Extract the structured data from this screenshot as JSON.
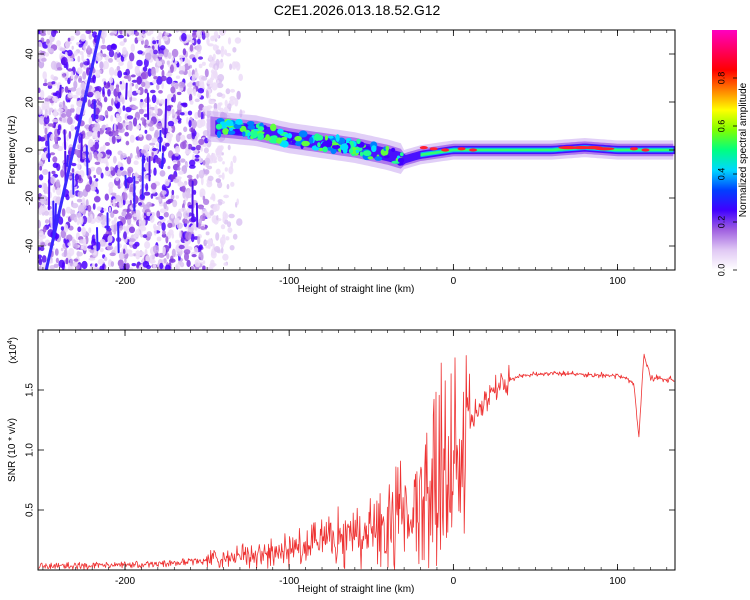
{
  "chart_data": [
    {
      "type": "heatmap",
      "title": "C2E1.2026.013.18.52.G12",
      "xlabel": "Height of straight line (km)",
      "ylabel": "Frequency (Hz)",
      "xlim": [
        -253,
        135
      ],
      "ylim": [
        -50,
        50
      ],
      "xticks": [
        -200,
        -100,
        0,
        100
      ],
      "xtick_labels": [
        "-200",
        "-100",
        "0",
        "100"
      ],
      "yticks": [
        -40,
        -20,
        0,
        20,
        40
      ],
      "ytick_labels": [
        "-40",
        "-20",
        "0",
        "20",
        "40"
      ],
      "ridge": {
        "x": [
          -150,
          -120,
          -100,
          -80,
          -60,
          -40,
          -30,
          -20,
          0,
          20,
          60,
          80,
          100,
          120,
          135
        ],
        "y": [
          10,
          8,
          5,
          3,
          1,
          -2,
          -4,
          -2,
          0,
          0,
          0,
          1,
          0,
          0,
          0
        ]
      },
      "diagonal_line": {
        "x": [
          -248,
          -215
        ],
        "y": [
          -50,
          50
        ]
      },
      "colorbar": {
        "label": "Normalized spectral amplitude",
        "range": [
          0,
          1
        ],
        "ticks": [
          0.0,
          0.2,
          0.4,
          0.6,
          0.8
        ],
        "tick_labels": [
          "0.0",
          "0.2",
          "0.4",
          "0.6",
          "0.8"
        ],
        "colors": [
          "#ffffff",
          "#e0c8f4",
          "#a060e0",
          "#4000ff",
          "#0040ff",
          "#00d8ff",
          "#00ff80",
          "#80ff00",
          "#ffff00",
          "#ff8000",
          "#ff0000",
          "#ff0060",
          "#ff00c0"
        ]
      }
    },
    {
      "type": "line",
      "xlabel": "Height of straight line (km)",
      "ylabel": "SNR (10 * v/v)",
      "multiplier": "(x10",
      "multiplier_exp": "4",
      "multiplier_close": ")",
      "xlim": [
        -253,
        135
      ],
      "ylim": [
        0,
        20000
      ],
      "xticks": [
        -200,
        -100,
        0,
        100
      ],
      "xtick_labels": [
        "-200",
        "-100",
        "0",
        "100"
      ],
      "yticks": [
        5000,
        10000,
        15000
      ],
      "ytick_labels": [
        "0.5",
        "1.0",
        "1.5"
      ],
      "color": "#ee3333",
      "series": [
        {
          "name": "SNR",
          "x": [
            -253,
            -230,
            -200,
            -180,
            -160,
            -140,
            -120,
            -100,
            -80,
            -60,
            -40,
            -30,
            -20,
            -10,
            0,
            10,
            20,
            30,
            40,
            50,
            60,
            80,
            100,
            105,
            110,
            113,
            116,
            120,
            135
          ],
          "y": [
            300,
            350,
            400,
            500,
            700,
            900,
            1200,
            1700,
            2200,
            2900,
            3800,
            5000,
            6500,
            8000,
            9500,
            12000,
            14500,
            15500,
            16200,
            16300,
            16400,
            16300,
            16200,
            16000,
            15500,
            11000,
            18000,
            16000,
            15800
          ]
        }
      ]
    }
  ]
}
